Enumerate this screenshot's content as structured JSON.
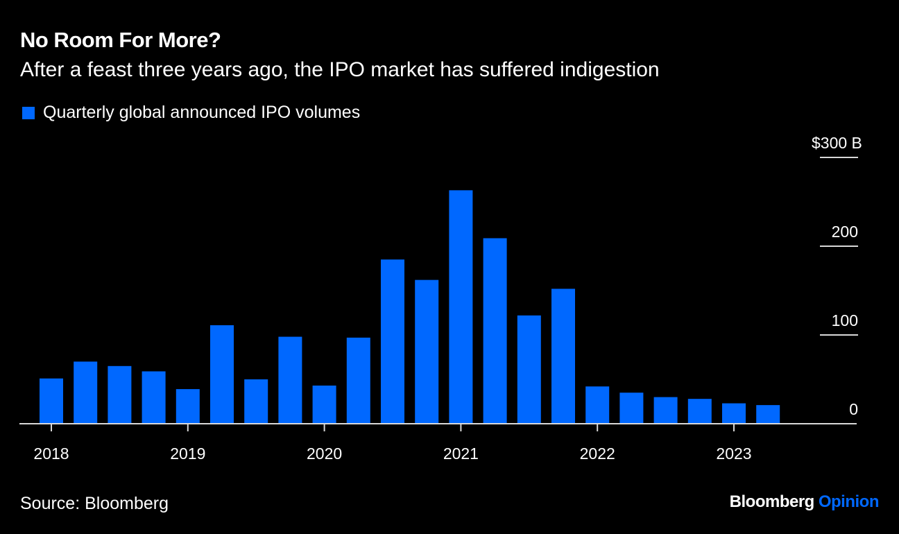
{
  "title": "No Room For More?",
  "subtitle": "After a feast three years ago, the IPO market has suffered indigestion",
  "source": "Source: Bloomberg",
  "brand": {
    "name": "Bloomberg",
    "section": "Opinion",
    "accent": "#0068FF"
  },
  "colors": {
    "background": "#000000",
    "bar": "#0068FF",
    "text": "#FFFFFF",
    "grid": "#D9D9D9"
  },
  "chart_data": {
    "type": "bar",
    "title": "No Room For More?",
    "subtitle": "After a feast three years ago, the IPO market has suffered indigestion",
    "xlabel": "",
    "ylabel": "",
    "legend": {
      "position": "top-left",
      "entries": [
        "Quarterly global announced IPO volumes"
      ]
    },
    "y_axis": {
      "position": "right",
      "ticks": [
        0,
        100,
        200,
        300
      ],
      "tick_labels": [
        "0",
        "100",
        "200",
        "$300 B"
      ],
      "ylim": [
        0,
        300
      ],
      "unit": "$ billions"
    },
    "x_axis": {
      "tick_labels": [
        "2018",
        "2019",
        "2020",
        "2021",
        "2022",
        "2023"
      ],
      "tick_every": 4
    },
    "grid": true,
    "categories": [
      "2018 Q1",
      "2018 Q2",
      "2018 Q3",
      "2018 Q4",
      "2019 Q1",
      "2019 Q2",
      "2019 Q3",
      "2019 Q4",
      "2020 Q1",
      "2020 Q2",
      "2020 Q3",
      "2020 Q4",
      "2021 Q1",
      "2021 Q2",
      "2021 Q3",
      "2021 Q4",
      "2022 Q1",
      "2022 Q2",
      "2022 Q3",
      "2022 Q4",
      "2023 Q1",
      "2023 Q2"
    ],
    "series": [
      {
        "name": "Quarterly global announced IPO volumes",
        "values": [
          51,
          70,
          65,
          59,
          39,
          111,
          50,
          98,
          43,
          97,
          185,
          162,
          263,
          209,
          122,
          152,
          42,
          35,
          30,
          28,
          23,
          21
        ]
      }
    ]
  }
}
